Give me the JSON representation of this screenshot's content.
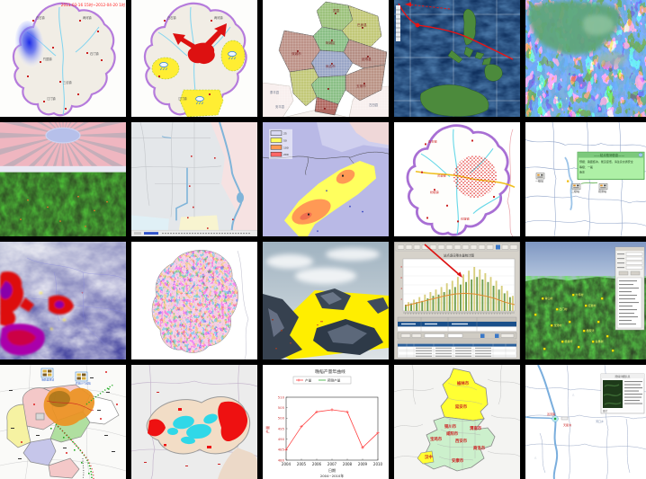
{
  "gallery": {
    "rows": 4,
    "cols": 5,
    "colors": {
      "background": "#000000",
      "county_border_purple": "#b57bdc",
      "warning_red": "#dd1111",
      "warning_yellow": "#ffee33",
      "river_cyan": "#7fd4f0"
    }
  },
  "cells": {
    "c1": {
      "title": "county precipitation map",
      "date_label": "2011-03-16 15时~2012-04-20 1时",
      "towns": [
        "白石镇",
        "两河镇",
        "石门镇",
        "竹园镇",
        "江门镇",
        "三合镇"
      ]
    },
    "c2": {
      "title": "county warning map",
      "towns": [
        "白石镇",
        "两河镇",
        "江门镇"
      ]
    },
    "c3": {
      "title": "administrative hatched map",
      "inner": [
        "巴彦县",
        "宾县",
        "阿城区",
        "双城市",
        "延寿县",
        "尚志市",
        "五常市"
      ],
      "outer": [
        "泰平县",
        "安平县",
        "古田县"
      ]
    },
    "c9": {
      "title": "county hazard map",
      "towns": [
        "首车镇",
        "灵溪镇",
        "松柏镇",
        "石堤镇"
      ]
    },
    "c10": {
      "title": "station popup map",
      "popup_title": "——站点检测信息——",
      "popup_lines": [
        "预报：路面结冰，能见度低，请注意交通安全",
        "等级：一般",
        "备注"
      ],
      "stations": [
        "一级站",
        "二级站",
        "观测站"
      ]
    },
    "c15": {
      "title": "3d placemark view",
      "marks": [
        "青山村",
        "石门村",
        "大坪村",
        "红岩村",
        "龙潭村",
        "杨家湾",
        "核桃坪",
        "白果树"
      ]
    },
    "c16": {
      "title": "agro monitoring map",
      "icons": [
        "墒情监测站",
        "农田小气候站"
      ]
    },
    "c19": {
      "title": "shaanxi city map",
      "cities": [
        "榆林市",
        "延安市",
        "铜川市",
        "渭南市",
        "咸阳市",
        "宝鸡市",
        "西安市",
        "商洛市",
        "汉中",
        "安康市"
      ]
    },
    "c20": {
      "title": "river photo popup map",
      "popup_title": "险情详细信息",
      "places": [
        "双河镇",
        "天星洲",
        "河口乡"
      ],
      "caption": "图片"
    }
  },
  "chart_data": [
    {
      "cell": "c14",
      "type": "bar",
      "title": "站点逐日降水量统计图",
      "values": [
        10,
        14,
        12,
        18,
        14,
        22,
        16,
        26,
        20,
        30,
        24,
        34,
        26,
        38,
        30,
        44,
        34,
        48,
        38,
        54,
        42,
        58,
        46,
        64,
        50,
        70,
        54,
        66,
        50,
        60,
        46,
        54,
        40,
        48,
        34,
        40,
        28,
        32,
        22,
        24
      ],
      "curve": [
        8,
        12,
        16,
        20,
        24,
        27,
        28,
        27,
        24,
        20,
        14,
        10
      ],
      "bar_colors": [
        "#6f9e4f",
        "#d8cf7e"
      ],
      "ylim": [
        0,
        80
      ],
      "legend_position": "top-left"
    },
    {
      "cell": "c18",
      "type": "line",
      "title": "晚稻产量年曲线",
      "legend": [
        "产量",
        "预测产量"
      ],
      "x": [
        2004,
        2005,
        2006,
        2007,
        2008,
        2009,
        2010
      ],
      "values": [
        485,
        496,
        503,
        504,
        503,
        486,
        493
      ],
      "ylim": [
        480,
        510
      ],
      "ytick_step": 5,
      "xlabel": "日期",
      "xrange_label": "2004~2010年",
      "ylabel": "产量",
      "line_color": "#ff4444",
      "legend2_color": "#33aa33"
    }
  ]
}
